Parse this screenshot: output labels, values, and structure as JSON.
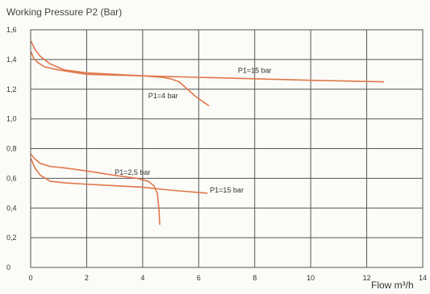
{
  "chart_data": {
    "type": "line",
    "title": "Working Pressure P2 (Bar)",
    "xlabel": "Flow m³/h",
    "ylabel": "",
    "xlim": [
      0,
      14
    ],
    "ylim": [
      0,
      1.6
    ],
    "x_ticks": [
      0,
      2,
      4,
      6,
      8,
      10,
      12,
      14
    ],
    "y_ticks": [
      0,
      0.2,
      0.4,
      0.6,
      0.8,
      1.0,
      1.2,
      1.4,
      1.6
    ],
    "x_tick_labels": [
      "0",
      "2",
      "4",
      "6",
      "8",
      "10",
      "12",
      "14"
    ],
    "y_tick_labels": [
      "0",
      "0,2",
      "0,4",
      "0,6",
      "0,8",
      "1,0",
      "1,2",
      "1,4",
      "1,6"
    ],
    "grid": true,
    "line_color": "#e0774a",
    "series": [
      {
        "name": "",
        "label_text": "P1=15 bar",
        "label_at": [
          7.4,
          1.31
        ],
        "x": [
          0.02,
          0.1,
          0.25,
          0.5,
          1.0,
          2.0,
          4.0,
          6.0,
          8.0,
          10.0,
          12.6
        ],
        "y": [
          1.45,
          1.41,
          1.38,
          1.35,
          1.33,
          1.3,
          1.29,
          1.28,
          1.27,
          1.26,
          1.25
        ]
      },
      {
        "name": "",
        "label_text": "P1=4 bar",
        "label_at": [
          4.2,
          1.14
        ],
        "x": [
          0.02,
          0.15,
          0.35,
          0.7,
          1.2,
          2.0,
          3.0,
          4.0,
          4.7,
          5.0,
          5.3,
          5.6,
          5.9,
          6.2,
          6.35
        ],
        "y": [
          1.52,
          1.47,
          1.42,
          1.37,
          1.33,
          1.31,
          1.3,
          1.29,
          1.28,
          1.27,
          1.25,
          1.2,
          1.15,
          1.11,
          1.09
        ]
      },
      {
        "name": "",
        "label_text": "P1=2,5 bar",
        "label_at": [
          3.0,
          0.625
        ],
        "x": [
          0.02,
          0.15,
          0.35,
          0.7,
          1.2,
          2.0,
          3.0,
          3.8,
          4.2,
          4.4,
          4.52,
          4.58,
          4.61
        ],
        "y": [
          0.76,
          0.73,
          0.7,
          0.68,
          0.67,
          0.65,
          0.62,
          0.6,
          0.58,
          0.55,
          0.5,
          0.4,
          0.29
        ]
      },
      {
        "name": "",
        "label_text": "P1=15 bar",
        "label_at": [
          6.4,
          0.505
        ],
        "x": [
          0.02,
          0.15,
          0.35,
          0.7,
          1.2,
          2.0,
          3.0,
          4.0,
          5.0,
          6.3
        ],
        "y": [
          0.73,
          0.67,
          0.62,
          0.58,
          0.57,
          0.56,
          0.55,
          0.54,
          0.52,
          0.5
        ]
      }
    ]
  }
}
